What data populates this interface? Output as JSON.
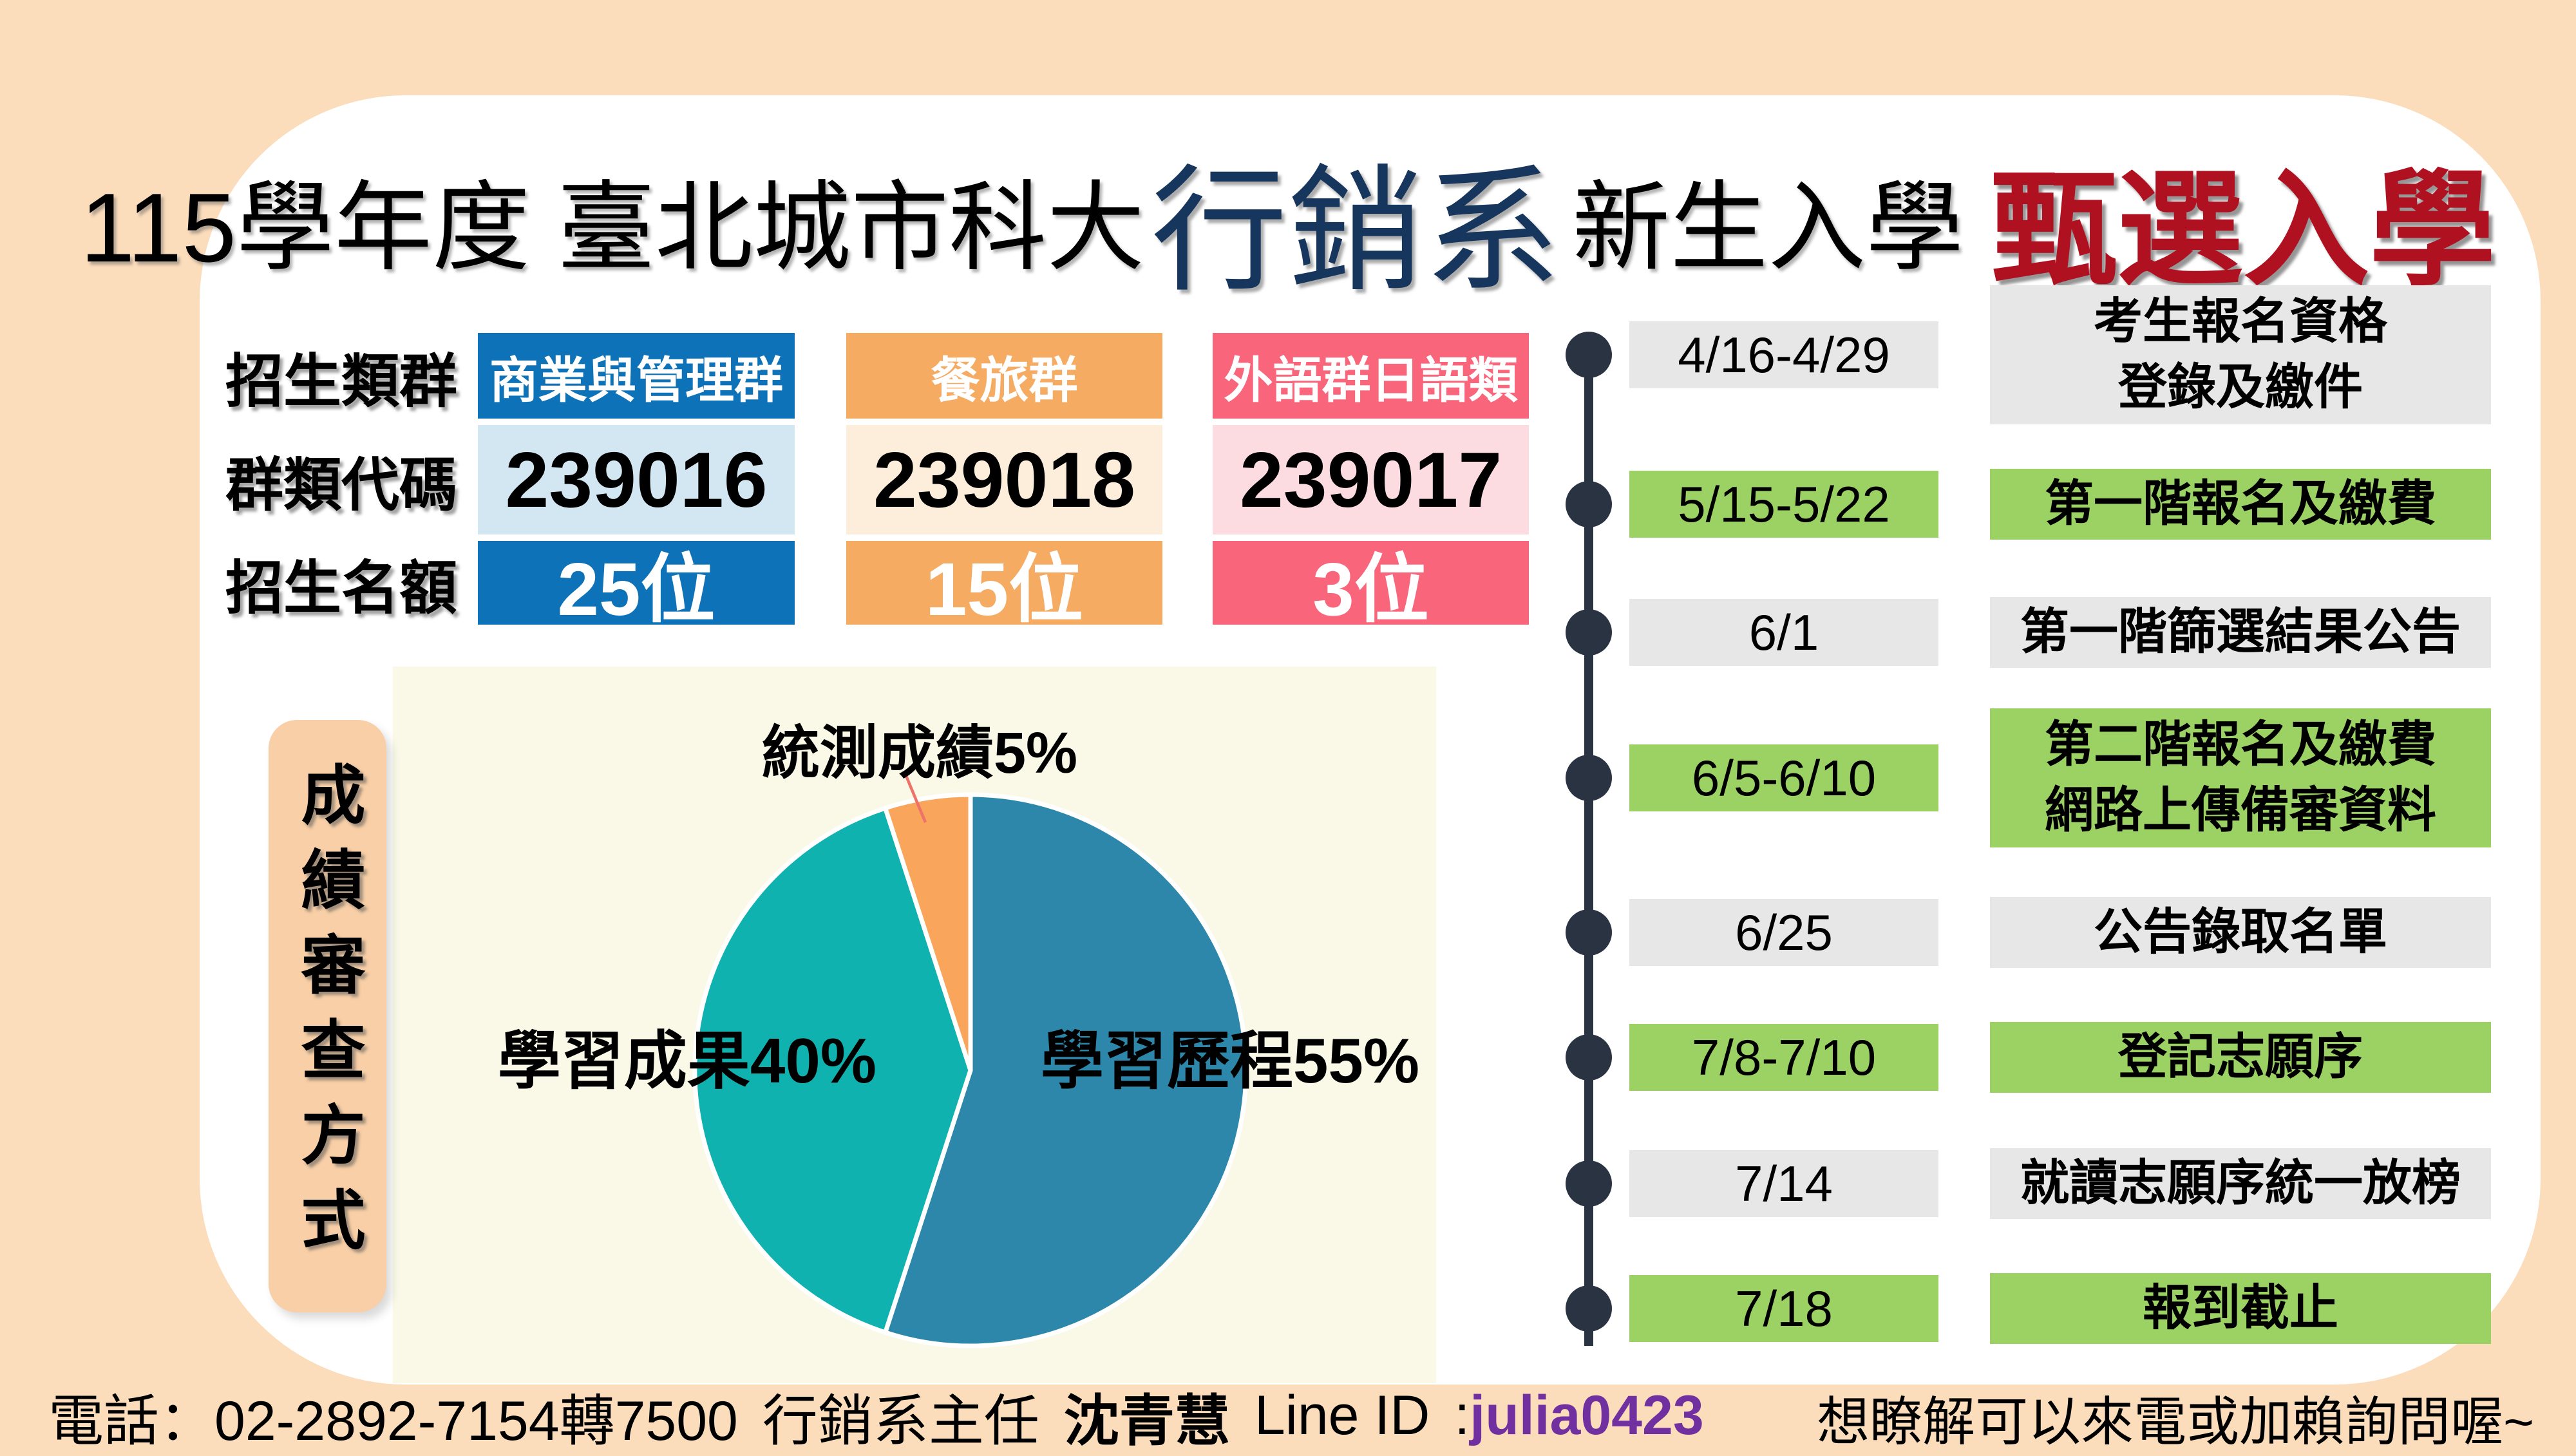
{
  "theme": {
    "page_bg": "#FBDCBB",
    "card_bg": "#FFFFFF",
    "label_peach": "#F8CFA6",
    "cream": "#FAF9E7",
    "gray": "#E7E7E7",
    "green": "#9CD263",
    "navy": "#2A3342",
    "title_navy": "#17365D",
    "title_red": "#B01120",
    "purple": "#7030A0",
    "leader_line": "#EE7268"
  },
  "title": {
    "part1": "115學年度 臺北城市科大",
    "dept": "行銷系",
    "part2": "新生入學",
    "admission_type": "甄選入學"
  },
  "admission_table": {
    "row_labels": [
      "招生類群",
      "群類代碼",
      "招生名額"
    ],
    "columns": [
      {
        "group": "商業與管理群",
        "code": "239016",
        "quota": "25位",
        "header_color": "#0E72B8",
        "code_bg": "#D3E7F3"
      },
      {
        "group": "餐旅群",
        "code": "239018",
        "quota": "15位",
        "header_color": "#F6AB63",
        "code_bg": "#FDEEDC"
      },
      {
        "group": "外語群日語類",
        "code": "239017",
        "quota": "3位",
        "header_color": "#F9657A",
        "code_bg": "#FCDBE1"
      }
    ]
  },
  "review": {
    "side_label": "成績審查方式"
  },
  "chart_data": {
    "type": "pie",
    "title": "成績審查方式",
    "start_angle_deg": 0,
    "direction": "clockwise",
    "legend_position": "labels-on-chart",
    "slices": [
      {
        "label": "學習歷程",
        "value": 55,
        "color": "#2C87AA",
        "label_text": "學習歷程55%"
      },
      {
        "label": "學習成果",
        "value": 40,
        "color": "#10B2AF",
        "label_text": "學習成果40%"
      },
      {
        "label": "統測成績",
        "value": 5,
        "color": "#F9A55C",
        "label_text": "統測成績5%"
      }
    ]
  },
  "timeline": {
    "rows": [
      {
        "date": "4/16-4/29",
        "desc": "考生報名資格\n登錄及繳件",
        "highlight": false
      },
      {
        "date": "5/15-5/22",
        "desc": "第一階報名及繳費",
        "highlight": true
      },
      {
        "date": "6/1",
        "desc": "第一階篩選結果公告",
        "highlight": false
      },
      {
        "date": "6/5-6/10",
        "desc": "第二階報名及繳費\n網路上傳備審資料",
        "highlight": true
      },
      {
        "date": "6/25",
        "desc": "公告錄取名單",
        "highlight": false
      },
      {
        "date": "7/8-7/10",
        "desc": "登記志願序",
        "highlight": true
      },
      {
        "date": "7/14",
        "desc": "就讀志願序統一放榜",
        "highlight": false
      },
      {
        "date": "7/18",
        "desc": "報到截止",
        "highlight": true
      }
    ]
  },
  "footer": {
    "phone": "電話：02-2892-7154轉7500",
    "dept_role": "行銷系主任",
    "name": "沈青慧",
    "line_label": "Line ID",
    "colon": ": ",
    "line_id": "julia0423",
    "right_note": "想瞭解可以來電或加賴詢問喔~"
  }
}
